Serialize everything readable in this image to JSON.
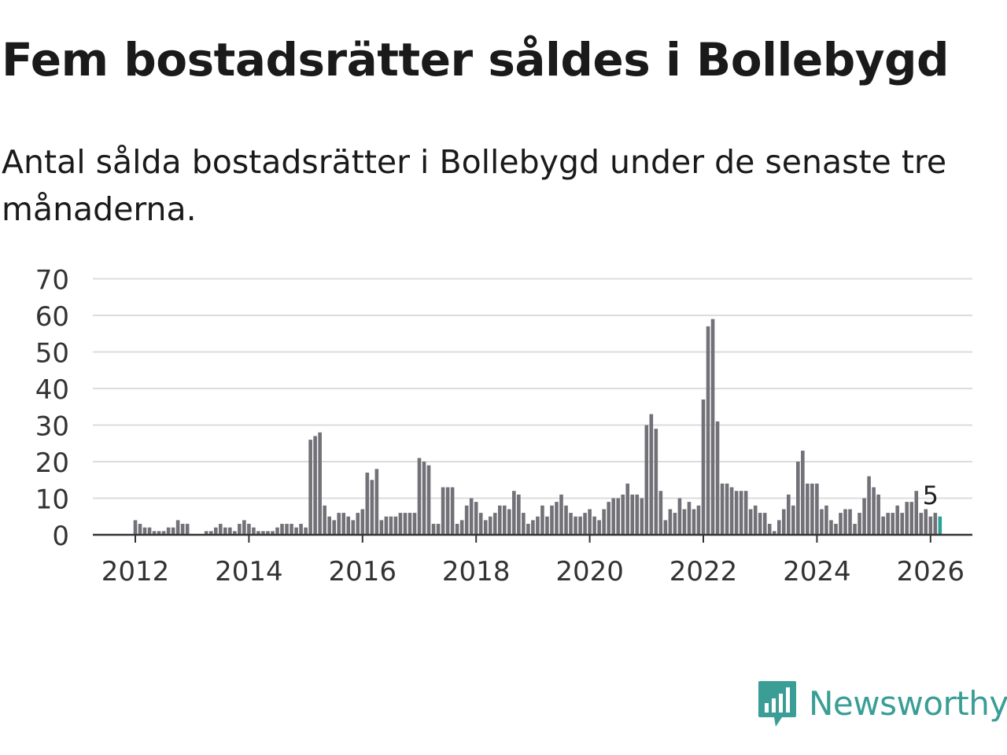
{
  "title": "Fem bostadsrätter såldes i Bollebygd",
  "subtitle": "Antal sålda bostadsrätter i Bollebygd under de senaste tre månaderna.",
  "logo": {
    "text": "Newsworthy",
    "icon": "bar-chart-speech-bubble-icon",
    "color": "#3a9e96"
  },
  "colors": {
    "bar": "#727178",
    "highlight": "#2aa198",
    "grid": "#dcdcdc",
    "axis": "#333333"
  },
  "chart_data": {
    "type": "bar",
    "title": "Fem bostadsrätter såldes i Bollebygd",
    "xlabel": "",
    "ylabel": "",
    "ylim": [
      0,
      70
    ],
    "yticks": [
      0,
      10,
      20,
      30,
      40,
      50,
      60,
      70
    ],
    "xticks": [
      2012,
      2014,
      2016,
      2018,
      2020,
      2022,
      2024,
      2026
    ],
    "start": [
      2012,
      1
    ],
    "frequency": "monthly",
    "grid": true,
    "annotation": {
      "index": 168,
      "text": "5"
    },
    "values": [
      4,
      3,
      2,
      2,
      1,
      1,
      1,
      2,
      2,
      4,
      3,
      3,
      0,
      0,
      0,
      1,
      1,
      2,
      3,
      2,
      2,
      1,
      3,
      4,
      3,
      2,
      1,
      1,
      1,
      1,
      2,
      3,
      3,
      3,
      2,
      3,
      2,
      26,
      27,
      28,
      8,
      5,
      4,
      6,
      6,
      5,
      4,
      6,
      7,
      17,
      15,
      18,
      4,
      5,
      5,
      5,
      6,
      6,
      6,
      6,
      21,
      20,
      19,
      3,
      3,
      13,
      13,
      13,
      3,
      4,
      8,
      10,
      9,
      6,
      4,
      5,
      6,
      8,
      8,
      7,
      12,
      11,
      6,
      3,
      4,
      5,
      8,
      5,
      8,
      9,
      11,
      8,
      6,
      5,
      5,
      6,
      7,
      5,
      4,
      7,
      9,
      10,
      10,
      11,
      14,
      11,
      11,
      10,
      30,
      33,
      29,
      12,
      4,
      7,
      6,
      10,
      7,
      9,
      7,
      8,
      37,
      57,
      59,
      31,
      14,
      14,
      13,
      12,
      12,
      12,
      7,
      8,
      6,
      6,
      3,
      1,
      4,
      7,
      11,
      8,
      20,
      23,
      14,
      14,
      14,
      7,
      8,
      4,
      3,
      6,
      7,
      7,
      3,
      6,
      10,
      16,
      13,
      11,
      5,
      6,
      6,
      8,
      6,
      9,
      9,
      12,
      6,
      7,
      5,
      6,
      5
    ]
  }
}
